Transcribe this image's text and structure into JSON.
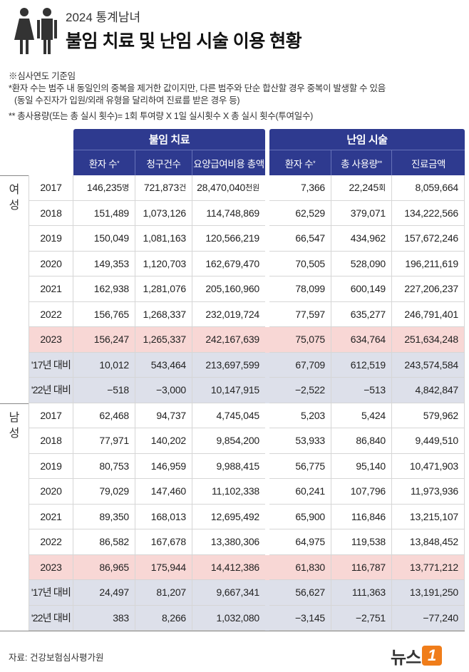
{
  "header": {
    "series": "2024 통계남녀",
    "title": "불임 치료 및 난임 시술 이용 현황"
  },
  "notes": [
    "※심사연도 기준임",
    "*환자 수는 범주 내 동일인의 중복을 제거한 값이지만, 다른 범주와 단순 합산할 경우 중복이 발생할 수 있음",
    "(동일 수진자가 입원/외래 유형을 달리하여 진료를 받은 경우 등)",
    "** 총사용량(또는 총 실시 횟수)= 1회 투여량 X 1일 실시횟수 X 총 실시 횟수(투여일수)"
  ],
  "table": {
    "groups": [
      {
        "label": "불임 치료",
        "columns": [
          {
            "label": "환자 수",
            "sup": "*"
          },
          {
            "label": "청구건수"
          },
          {
            "label": "요양급여비용 총액"
          }
        ]
      },
      {
        "label": "난임 시술",
        "columns": [
          {
            "label": "환자 수",
            "sup": "*"
          },
          {
            "label": "총 사용량",
            "sup": "**"
          },
          {
            "label": "진료금액"
          }
        ]
      }
    ],
    "sections": [
      {
        "label": "여성",
        "rows": [
          {
            "label": "2017",
            "cells": [
              "146,235",
              "721,873",
              "28,470,040",
              "7,366",
              "22,245",
              "8,059,664"
            ],
            "units": {
              "0": "명",
              "1": "건",
              "2": "천원",
              "4": "회"
            }
          },
          {
            "label": "2018",
            "cells": [
              "151,489",
              "1,073,126",
              "114,748,869",
              "62,529",
              "379,071",
              "134,222,566"
            ]
          },
          {
            "label": "2019",
            "cells": [
              "150,049",
              "1,081,163",
              "120,566,219",
              "66,547",
              "434,962",
              "157,672,246"
            ]
          },
          {
            "label": "2020",
            "cells": [
              "149,353",
              "1,120,703",
              "162,679,470",
              "70,505",
              "528,090",
              "196,211,619"
            ]
          },
          {
            "label": "2021",
            "cells": [
              "162,938",
              "1,281,076",
              "205,160,960",
              "78,099",
              "600,149",
              "227,206,237"
            ]
          },
          {
            "label": "2022",
            "cells": [
              "156,765",
              "1,268,337",
              "232,019,724",
              "77,597",
              "635,277",
              "246,791,401"
            ]
          },
          {
            "label": "2023",
            "cells": [
              "156,247",
              "1,265,337",
              "242,167,639",
              "75,075",
              "634,764",
              "251,634,248"
            ]
          },
          {
            "label": "'17년 대비",
            "cells": [
              "10,012",
              "543,464",
              "213,697,599",
              "67,709",
              "612,519",
              "243,574,584"
            ]
          },
          {
            "label": "'22년 대비",
            "cells": [
              "−518",
              "−3,000",
              "10,147,915",
              "−2,522",
              "−513",
              "4,842,847"
            ]
          }
        ]
      },
      {
        "label": "남성",
        "rows": [
          {
            "label": "2017",
            "cells": [
              "62,468",
              "94,737",
              "4,745,045",
              "5,203",
              "5,424",
              "579,962"
            ]
          },
          {
            "label": "2018",
            "cells": [
              "77,971",
              "140,202",
              "9,854,200",
              "53,933",
              "86,840",
              "9,449,510"
            ]
          },
          {
            "label": "2019",
            "cells": [
              "80,753",
              "146,959",
              "9,988,415",
              "56,775",
              "95,140",
              "10,471,903"
            ]
          },
          {
            "label": "2020",
            "cells": [
              "79,029",
              "147,460",
              "11,102,338",
              "60,241",
              "107,796",
              "11,973,936"
            ]
          },
          {
            "label": "2021",
            "cells": [
              "89,350",
              "168,013",
              "12,695,492",
              "65,900",
              "116,846",
              "13,215,107"
            ]
          },
          {
            "label": "2022",
            "cells": [
              "86,582",
              "167,678",
              "13,380,306",
              "64,975",
              "119,538",
              "13,848,452"
            ]
          },
          {
            "label": "2023",
            "cells": [
              "86,965",
              "175,944",
              "14,412,386",
              "61,830",
              "116,787",
              "13,771,212"
            ]
          },
          {
            "label": "'17년 대비",
            "cells": [
              "24,497",
              "81,207",
              "9,667,341",
              "56,627",
              "111,363",
              "13,191,250"
            ]
          },
          {
            "label": "'22년 대비",
            "cells": [
              "383",
              "8,266",
              "1,032,080",
              "−3,145",
              "−2,751",
              "−77,240"
            ]
          }
        ]
      }
    ]
  },
  "footer": {
    "source": "자료: 건강보험심사평가원",
    "logo": {
      "text": "뉴스",
      "mark": "1"
    }
  }
}
